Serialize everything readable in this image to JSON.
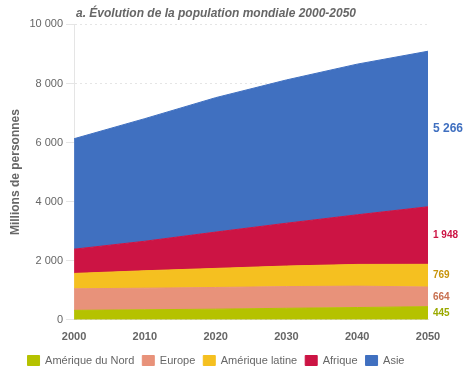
{
  "chart_data": {
    "type": "area",
    "stacked": true,
    "title": "a. Évolution de la population mondiale 2000-2050",
    "ylabel": "Millions de personnes",
    "x": [
      2000,
      2010,
      2020,
      2030,
      2040,
      2050
    ],
    "xlim": [
      2000,
      2050
    ],
    "xticks": [
      2000,
      2010,
      2020,
      2030,
      2040,
      2050
    ],
    "ylim": [
      0,
      10000
    ],
    "yticks": [
      0,
      {
        "value": 2000,
        "label": "2 000"
      },
      {
        "value": 4000,
        "label": "4 000"
      },
      {
        "value": 6000,
        "label": "6 000"
      },
      {
        "value": 8000,
        "label": "8 000"
      },
      {
        "value": 10000,
        "label": "10 000"
      }
    ],
    "grid": true,
    "legend": "bottom",
    "series": [
      {
        "name": "Amérique du Nord",
        "color": "#b5c200",
        "values": [
          320,
          340,
          360,
          390,
          415,
          445
        ]
      },
      {
        "name": "Europe",
        "color": "#e8927a",
        "values": [
          730,
          730,
          735,
          735,
          725,
          664
        ]
      },
      {
        "name": "Amérique latine",
        "color": "#f5c020",
        "values": [
          520,
          590,
          645,
          695,
          735,
          769
        ]
      },
      {
        "name": "Afrique",
        "color": "#cc1444",
        "values": [
          820,
          1000,
          1230,
          1450,
          1680,
          1948
        ]
      },
      {
        "name": "Asie",
        "color": "#4070c0",
        "values": [
          3740,
          4150,
          4550,
          4850,
          5100,
          5266
        ]
      }
    ],
    "annotations": [
      {
        "text": "5 266",
        "series": "Asie",
        "x": 2050,
        "color": "#4070c0"
      },
      {
        "text": "1 948",
        "series": "Afrique",
        "x": 2050,
        "color": "#cc1444"
      },
      {
        "text": "769",
        "series": "Amérique latine",
        "x": 2050,
        "color": "#c8940a"
      },
      {
        "text": "664",
        "series": "Europe",
        "x": 2050,
        "color": "#c87050"
      },
      {
        "text": "445",
        "series": "Amérique du Nord",
        "x": 2050,
        "color": "#9aaa00"
      }
    ]
  }
}
